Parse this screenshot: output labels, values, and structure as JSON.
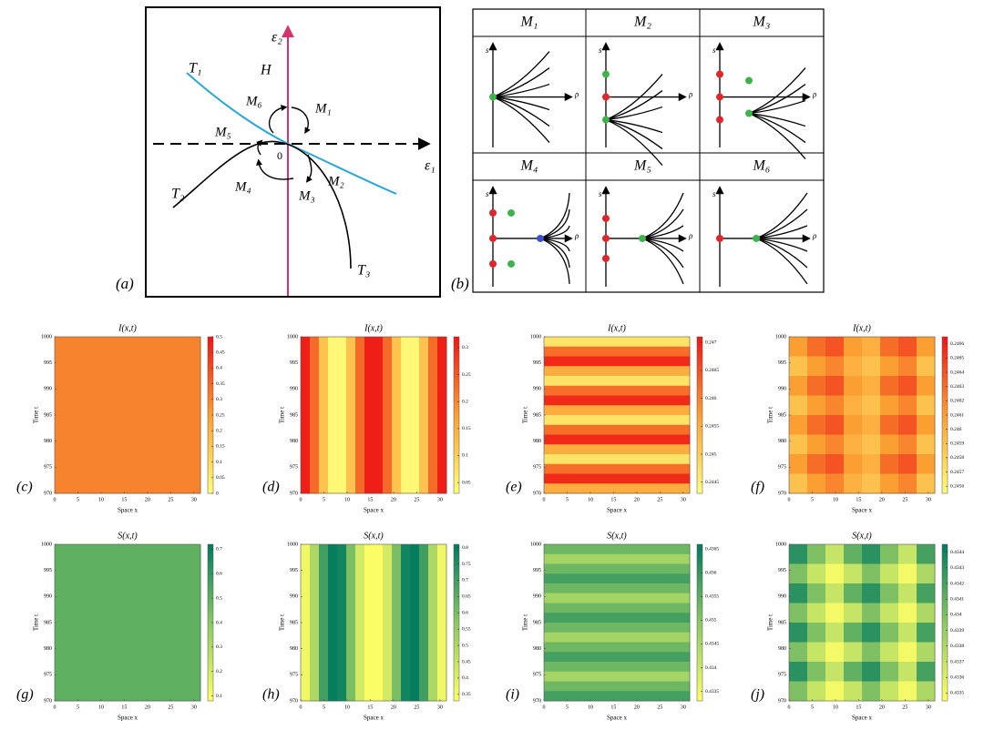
{
  "panel_a": {
    "label": "(a)",
    "vertical_axis": "ε₂",
    "horizontal_axis": "ε₁",
    "hopf_line": "H",
    "origin": "0",
    "curves": [
      "T₁",
      "T₂",
      "T₃"
    ],
    "regions": [
      "M₁",
      "M₂",
      "M₃",
      "M₄",
      "M₅",
      "M₆"
    ]
  },
  "panel_b": {
    "label": "(b)",
    "cells": [
      {
        "title": "M₁",
        "y_axis": "s",
        "x_axis": "ρ"
      },
      {
        "title": "M₂",
        "y_axis": "s",
        "x_axis": "ρ"
      },
      {
        "title": "M₃",
        "y_axis": "s",
        "x_axis": "ρ"
      },
      {
        "title": "M₄",
        "y_axis": "s",
        "x_axis": "ρ"
      },
      {
        "title": "M₅",
        "y_axis": "s",
        "x_axis": "ρ"
      },
      {
        "title": "M₆",
        "y_axis": "s",
        "x_axis": "ρ"
      }
    ]
  },
  "heatmaps": [
    {
      "label": "(c)",
      "title": "I(x,t)",
      "xlabel": "Space x",
      "ylabel": "Time t",
      "xlim": [
        0,
        31.4
      ],
      "ylim": [
        970,
        1000
      ],
      "xticks": [
        0,
        5,
        10,
        15,
        20,
        25,
        30
      ],
      "yticks": [
        970,
        975,
        980,
        985,
        990,
        995,
        1000
      ],
      "colormap": [
        "#ffff7a",
        "#fb9f33",
        "#ee1515"
      ],
      "clim": [
        0,
        0.5
      ],
      "cticks": [
        0,
        0.05,
        0.1,
        0.15,
        0.2,
        0.25,
        0.3,
        0.35,
        0.4,
        0.45,
        0.5
      ],
      "values": [
        [
          0.3
        ]
      ]
    },
    {
      "label": "(d)",
      "title": "I(x,t)",
      "xlabel": "Space x",
      "ylabel": "Time t",
      "xlim": [
        0,
        31.4
      ],
      "ylim": [
        970,
        1000
      ],
      "xticks": [
        0,
        5,
        10,
        15,
        20,
        25,
        30
      ],
      "yticks": [
        970,
        975,
        980,
        985,
        990,
        995,
        1000
      ],
      "colormap": [
        "#ffff7a",
        "#fb9f33",
        "#ee1515"
      ],
      "clim": [
        0.03,
        0.32
      ],
      "cticks": [
        0.05,
        0.1,
        0.15,
        0.2,
        0.25,
        0.3
      ],
      "values": [
        [
          0.31,
          0.23,
          0.12,
          0.04,
          0.04,
          0.12,
          0.23,
          0.31,
          0.31,
          0.23,
          0.12,
          0.04,
          0.04,
          0.12,
          0.23,
          0.31
        ]
      ]
    },
    {
      "label": "(e)",
      "title": "I(x,t)",
      "xlabel": "Space x",
      "ylabel": "Time t",
      "xlim": [
        0,
        31.4
      ],
      "ylim": [
        970,
        1000
      ],
      "xticks": [
        0,
        5,
        10,
        15,
        20,
        25,
        30
      ],
      "yticks": [
        970,
        975,
        980,
        985,
        990,
        995,
        1000
      ],
      "colormap": [
        "#ffff7a",
        "#fb9f33",
        "#ee1515"
      ],
      "clim": [
        0.2443,
        0.2471
      ],
      "cticks": [
        0.2445,
        0.245,
        0.2455,
        0.246,
        0.2465,
        0.247
      ],
      "values": [
        [
          0.2447
        ],
        [
          0.2462
        ],
        [
          0.2469
        ],
        [
          0.2455
        ],
        [
          0.2447
        ],
        [
          0.2462
        ],
        [
          0.2469
        ],
        [
          0.2455
        ],
        [
          0.2447
        ],
        [
          0.2462
        ],
        [
          0.2469
        ],
        [
          0.2455
        ],
        [
          0.2447
        ],
        [
          0.2462
        ],
        [
          0.2469
        ],
        [
          0.2455
        ]
      ]
    },
    {
      "label": "(f)",
      "title": "I(x,t)",
      "xlabel": "Space x",
      "ylabel": "Time t",
      "xlim": [
        0,
        31.4
      ],
      "ylim": [
        970,
        1000
      ],
      "xticks": [
        0,
        5,
        10,
        15,
        20,
        25,
        30
      ],
      "yticks": [
        970,
        975,
        980,
        985,
        990,
        995,
        1000
      ],
      "colormap": [
        "#ffff7a",
        "#fb9f33",
        "#ee1515"
      ],
      "clim": [
        0.24555,
        0.24665
      ],
      "cticks": [
        0.2456,
        0.2457,
        0.2458,
        0.2459,
        0.246,
        0.2461,
        0.2462,
        0.2463,
        0.2464,
        0.2465,
        0.2466
      ],
      "values": [
        [
          0.2461,
          0.2463,
          0.2464,
          0.2461,
          0.246,
          0.2463,
          0.2464,
          0.2461
        ],
        [
          0.2459,
          0.2461,
          0.2462,
          0.246,
          0.2459,
          0.2461,
          0.2462,
          0.2459
        ],
        [
          0.2461,
          0.2463,
          0.2464,
          0.2461,
          0.246,
          0.2463,
          0.2464,
          0.2461
        ],
        [
          0.2459,
          0.2461,
          0.2462,
          0.246,
          0.2459,
          0.2461,
          0.2462,
          0.2459
        ],
        [
          0.2461,
          0.2463,
          0.2464,
          0.2461,
          0.246,
          0.2463,
          0.2464,
          0.2461
        ],
        [
          0.2459,
          0.2461,
          0.2462,
          0.246,
          0.2459,
          0.2461,
          0.2462,
          0.2459
        ],
        [
          0.2461,
          0.2463,
          0.2464,
          0.2461,
          0.246,
          0.2463,
          0.2464,
          0.2461
        ],
        [
          0.2459,
          0.2461,
          0.2462,
          0.246,
          0.2459,
          0.2461,
          0.2462,
          0.2459
        ]
      ]
    },
    {
      "label": "(g)",
      "title": "S(x,t)",
      "xlabel": "Space x",
      "ylabel": "Time t",
      "xlim": [
        0,
        31.4
      ],
      "ylim": [
        970,
        1000
      ],
      "xticks": [
        0,
        5,
        10,
        15,
        20,
        25,
        30
      ],
      "yticks": [
        970,
        975,
        980,
        985,
        990,
        995,
        1000
      ],
      "colormap": [
        "#ffff66",
        "#8cc864",
        "#007a5e"
      ],
      "clim": [
        0.08,
        0.72
      ],
      "cticks": [
        0.1,
        0.2,
        0.3,
        0.4,
        0.5,
        0.6,
        0.7
      ],
      "values": [
        [
          0.5
        ]
      ]
    },
    {
      "label": "(h)",
      "title": "S(x,t)",
      "xlabel": "Space x",
      "ylabel": "Time t",
      "xlim": [
        0,
        31.4
      ],
      "ylim": [
        970,
        1000
      ],
      "xticks": [
        0,
        5,
        10,
        15,
        20,
        25,
        30
      ],
      "yticks": [
        970,
        975,
        980,
        985,
        990,
        995,
        1000
      ],
      "colormap": [
        "#ffff66",
        "#8cc864",
        "#007a5e"
      ],
      "clim": [
        0.33,
        0.81
      ],
      "cticks": [
        0.35,
        0.4,
        0.45,
        0.5,
        0.55,
        0.6,
        0.65,
        0.7,
        0.75,
        0.8
      ],
      "values": [
        [
          0.36,
          0.5,
          0.7,
          0.8,
          0.78,
          0.6,
          0.42,
          0.34,
          0.34,
          0.42,
          0.6,
          0.78,
          0.8,
          0.7,
          0.5,
          0.36
        ]
      ]
    },
    {
      "label": "(i)",
      "title": "S(x,t)",
      "xlabel": "Space x",
      "ylabel": "Time t",
      "xlim": [
        0,
        31.4
      ],
      "ylim": [
        970,
        1000
      ],
      "xticks": [
        0,
        5,
        10,
        15,
        20,
        25,
        30
      ],
      "yticks": [
        970,
        975,
        980,
        985,
        990,
        995,
        1000
      ],
      "colormap": [
        "#ffff66",
        "#8cc864",
        "#007a5e"
      ],
      "clim": [
        0.4333,
        0.4366
      ],
      "cticks": [
        0.4335,
        0.434,
        0.4345,
        0.435,
        0.4355,
        0.436,
        0.4365
      ],
      "values": [
        [
          0.4353
        ],
        [
          0.4346
        ],
        [
          0.4353
        ],
        [
          0.4358
        ],
        [
          0.4353
        ],
        [
          0.4346
        ],
        [
          0.4353
        ],
        [
          0.4358
        ],
        [
          0.4353
        ],
        [
          0.4346
        ],
        [
          0.4353
        ],
        [
          0.4358
        ],
        [
          0.4353
        ],
        [
          0.4346
        ],
        [
          0.4353
        ],
        [
          0.4358
        ]
      ]
    },
    {
      "label": "(j)",
      "title": "S(x,t)",
      "xlabel": "Space x",
      "ylabel": "Time t",
      "xlim": [
        0,
        31.4
      ],
      "ylim": [
        970,
        1000
      ],
      "xticks": [
        0,
        5,
        10,
        15,
        20,
        25,
        30
      ],
      "yticks": [
        970,
        975,
        980,
        985,
        990,
        995,
        1000
      ],
      "colormap": [
        "#ffff66",
        "#8cc864",
        "#007a5e"
      ],
      "clim": [
        0.43345,
        0.43445
      ],
      "cticks": [
        0.4335,
        0.4336,
        0.4337,
        0.4338,
        0.4339,
        0.434,
        0.4341,
        0.4342,
        0.4343,
        0.4344
      ],
      "values": [
        [
          0.4343,
          0.434,
          0.4337,
          0.4341,
          0.4343,
          0.434,
          0.4337,
          0.4342
        ],
        [
          0.434,
          0.4337,
          0.4335,
          0.4337,
          0.434,
          0.4337,
          0.4335,
          0.4338
        ],
        [
          0.4343,
          0.434,
          0.4337,
          0.4341,
          0.4343,
          0.434,
          0.4337,
          0.4342
        ],
        [
          0.434,
          0.4337,
          0.4335,
          0.4337,
          0.434,
          0.4337,
          0.4335,
          0.4338
        ],
        [
          0.4343,
          0.434,
          0.4337,
          0.4341,
          0.4343,
          0.434,
          0.4337,
          0.4342
        ],
        [
          0.434,
          0.4337,
          0.4335,
          0.4337,
          0.434,
          0.4337,
          0.4335,
          0.4338
        ],
        [
          0.4343,
          0.434,
          0.4337,
          0.4341,
          0.4343,
          0.434,
          0.4337,
          0.4342
        ],
        [
          0.434,
          0.4337,
          0.4335,
          0.4337,
          0.434,
          0.4337,
          0.4335,
          0.4338
        ]
      ]
    }
  ]
}
